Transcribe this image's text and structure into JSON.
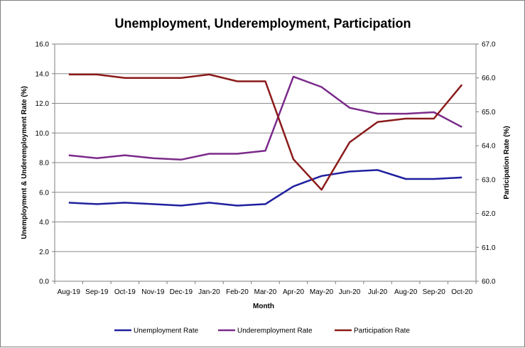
{
  "chart_data": {
    "type": "line",
    "title": "Unemployment, Underemployment, Participation",
    "xlabel": "Month",
    "ylabel_left": "Unemployment & Underemployment Rate (%)",
    "ylabel_right": "Participation Rate (%)",
    "categories": [
      "Aug-19",
      "Sep-19",
      "Oct-19",
      "Nov-19",
      "Dec-19",
      "Jan-20",
      "Feb-20",
      "Mar-20",
      "Apr-20",
      "May-20",
      "Jun-20",
      "Jul-20",
      "Aug-20",
      "Sep-20",
      "Oct-20"
    ],
    "ylim_left": [
      0,
      16
    ],
    "yticks_left": [
      "0.0",
      "2.0",
      "4.0",
      "6.0",
      "8.0",
      "10.0",
      "12.0",
      "14.0",
      "16.0"
    ],
    "ylim_right": [
      60,
      67
    ],
    "yticks_right": [
      "60.0",
      "61.0",
      "62.0",
      "63.0",
      "64.0",
      "65.0",
      "66.0",
      "67.0"
    ],
    "grid": "horizontal",
    "legend_position": "bottom",
    "series": [
      {
        "name": "Unemployment Rate",
        "axis": "left",
        "color": "#1f1f9f",
        "values": [
          5.3,
          5.2,
          5.3,
          5.2,
          5.1,
          5.3,
          5.1,
          5.2,
          6.4,
          7.1,
          7.4,
          7.5,
          6.9,
          6.9,
          7.0
        ]
      },
      {
        "name": "Underemployment Rate",
        "axis": "left",
        "color": "#7b2a8a",
        "values": [
          8.5,
          8.3,
          8.5,
          8.3,
          8.2,
          8.6,
          8.6,
          8.8,
          13.8,
          13.1,
          11.7,
          11.3,
          11.3,
          11.4,
          10.4
        ]
      },
      {
        "name": "Participation Rate",
        "axis": "right",
        "color": "#8b1a1a",
        "values": [
          66.1,
          66.1,
          66.0,
          66.0,
          66.0,
          66.1,
          65.9,
          65.9,
          63.6,
          62.7,
          64.1,
          64.7,
          64.8,
          64.8,
          65.8
        ]
      }
    ]
  }
}
